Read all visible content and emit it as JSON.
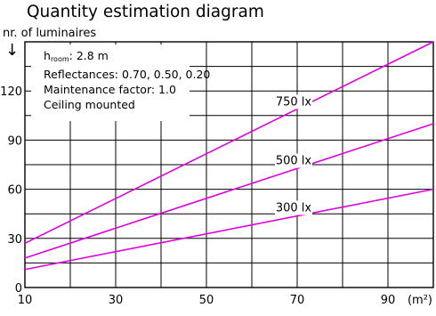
{
  "title": "Quantity estimation diagram",
  "info": {
    "h_symbol": "h",
    "h_sub": "room",
    "h_value": ": 2.8 m",
    "reflectances": "Reflectances:  0.70, 0.50, 0.20",
    "maintenance": "Maintenance factor:  1.0",
    "mounting": "Ceiling mounted"
  },
  "colors": {
    "line": "#e000e0",
    "grid": "#000000"
  },
  "chart_data": {
    "type": "line",
    "title": "Quantity estimation diagram",
    "ylabel": "nr. of luminaires",
    "xlabel": "(m²)",
    "xlim": [
      10,
      100
    ],
    "ylim": [
      0,
      150
    ],
    "x_gridlines": [
      10,
      20,
      30,
      40,
      50,
      60,
      70,
      80,
      90,
      100
    ],
    "y_gridlines": [
      0,
      15,
      30,
      45,
      60,
      75,
      90,
      105,
      120,
      135,
      150
    ],
    "x_ticks": [
      10,
      30,
      50,
      70,
      90
    ],
    "y_ticks": [
      0,
      30,
      60,
      90,
      120
    ],
    "x_unit_label": "(m²)",
    "grid": true,
    "series": [
      {
        "name": "750 lx",
        "x": [
          10,
          100
        ],
        "y": [
          27,
          150
        ]
      },
      {
        "name": "500 lx",
        "x": [
          10,
          100
        ],
        "y": [
          18,
          100
        ]
      },
      {
        "name": "300 lx",
        "x": [
          10,
          100
        ],
        "y": [
          11,
          60
        ]
      }
    ]
  }
}
